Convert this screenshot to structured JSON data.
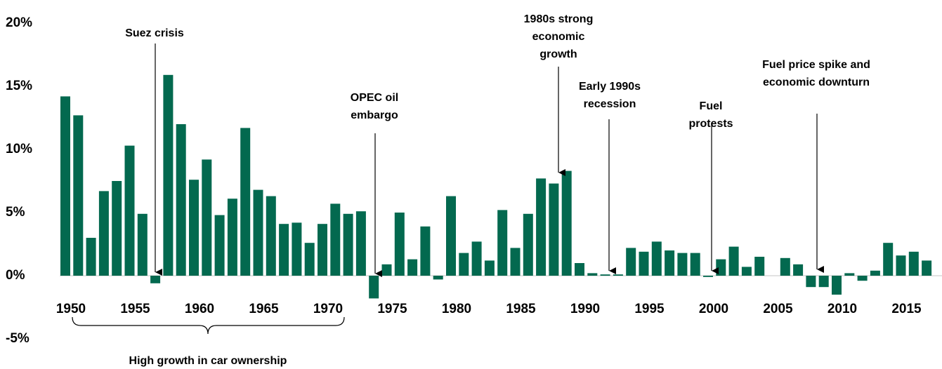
{
  "chart_data": {
    "type": "bar",
    "color": "#03694f",
    "categories": [
      "1950",
      null,
      null,
      null,
      null,
      "1955",
      null,
      null,
      null,
      null,
      "1960",
      null,
      null,
      null,
      null,
      "1965",
      null,
      null,
      null,
      null,
      "1970",
      null,
      null,
      null,
      null,
      "1975",
      null,
      null,
      null,
      null,
      "1980",
      null,
      null,
      null,
      null,
      "1985",
      null,
      null,
      null,
      null,
      "1990",
      null,
      null,
      null,
      null,
      "1995",
      null,
      null,
      null,
      null,
      "2000",
      null,
      null,
      null,
      null,
      "2005",
      null,
      null,
      null,
      null,
      "2010",
      null,
      null,
      null,
      null,
      "2015",
      null,
      null
    ],
    "values": [
      14.2,
      12.7,
      3.0,
      6.7,
      7.5,
      10.3,
      4.9,
      -0.6,
      15.9,
      12.0,
      7.6,
      9.2,
      4.8,
      6.1,
      11.7,
      6.8,
      6.3,
      4.1,
      4.2,
      2.6,
      4.1,
      5.7,
      4.9,
      5.1,
      -1.8,
      0.9,
      5.0,
      1.3,
      3.9,
      -0.3,
      6.3,
      1.8,
      2.7,
      1.2,
      5.2,
      2.2,
      4.9,
      7.7,
      7.3,
      8.3,
      1.0,
      0.2,
      0.1,
      0.1,
      2.2,
      1.9,
      2.7,
      2.0,
      1.8,
      1.8,
      -0.1,
      1.3,
      2.3,
      0.7,
      1.5,
      0.0,
      1.4,
      0.9,
      -0.9,
      -0.9,
      -1.5,
      0.2,
      -0.4,
      0.4,
      2.6,
      1.6,
      1.9,
      1.2
    ],
    "ylim": [
      -5,
      20
    ],
    "yticks": [
      {
        "value": -5,
        "label": "-5%"
      },
      {
        "value": 0,
        "label": "0%"
      },
      {
        "value": 5,
        "label": "5%"
      },
      {
        "value": 10,
        "label": "10%"
      },
      {
        "value": 15,
        "label": "15%"
      },
      {
        "value": 20,
        "label": "20%"
      }
    ],
    "annotations": [
      {
        "lines": [
          "Suez crisis"
        ]
      },
      {
        "lines": [
          "OPEC oil",
          "embargo"
        ]
      },
      {
        "lines": [
          "1980s strong",
          "economic",
          "growth"
        ]
      },
      {
        "lines": [
          "Early 1990s",
          "recession"
        ]
      },
      {
        "lines": [
          "Fuel",
          "protests"
        ]
      },
      {
        "lines": [
          "Fuel price spike and",
          "economic downturn"
        ]
      }
    ],
    "brace_label": "High growth in car ownership"
  }
}
